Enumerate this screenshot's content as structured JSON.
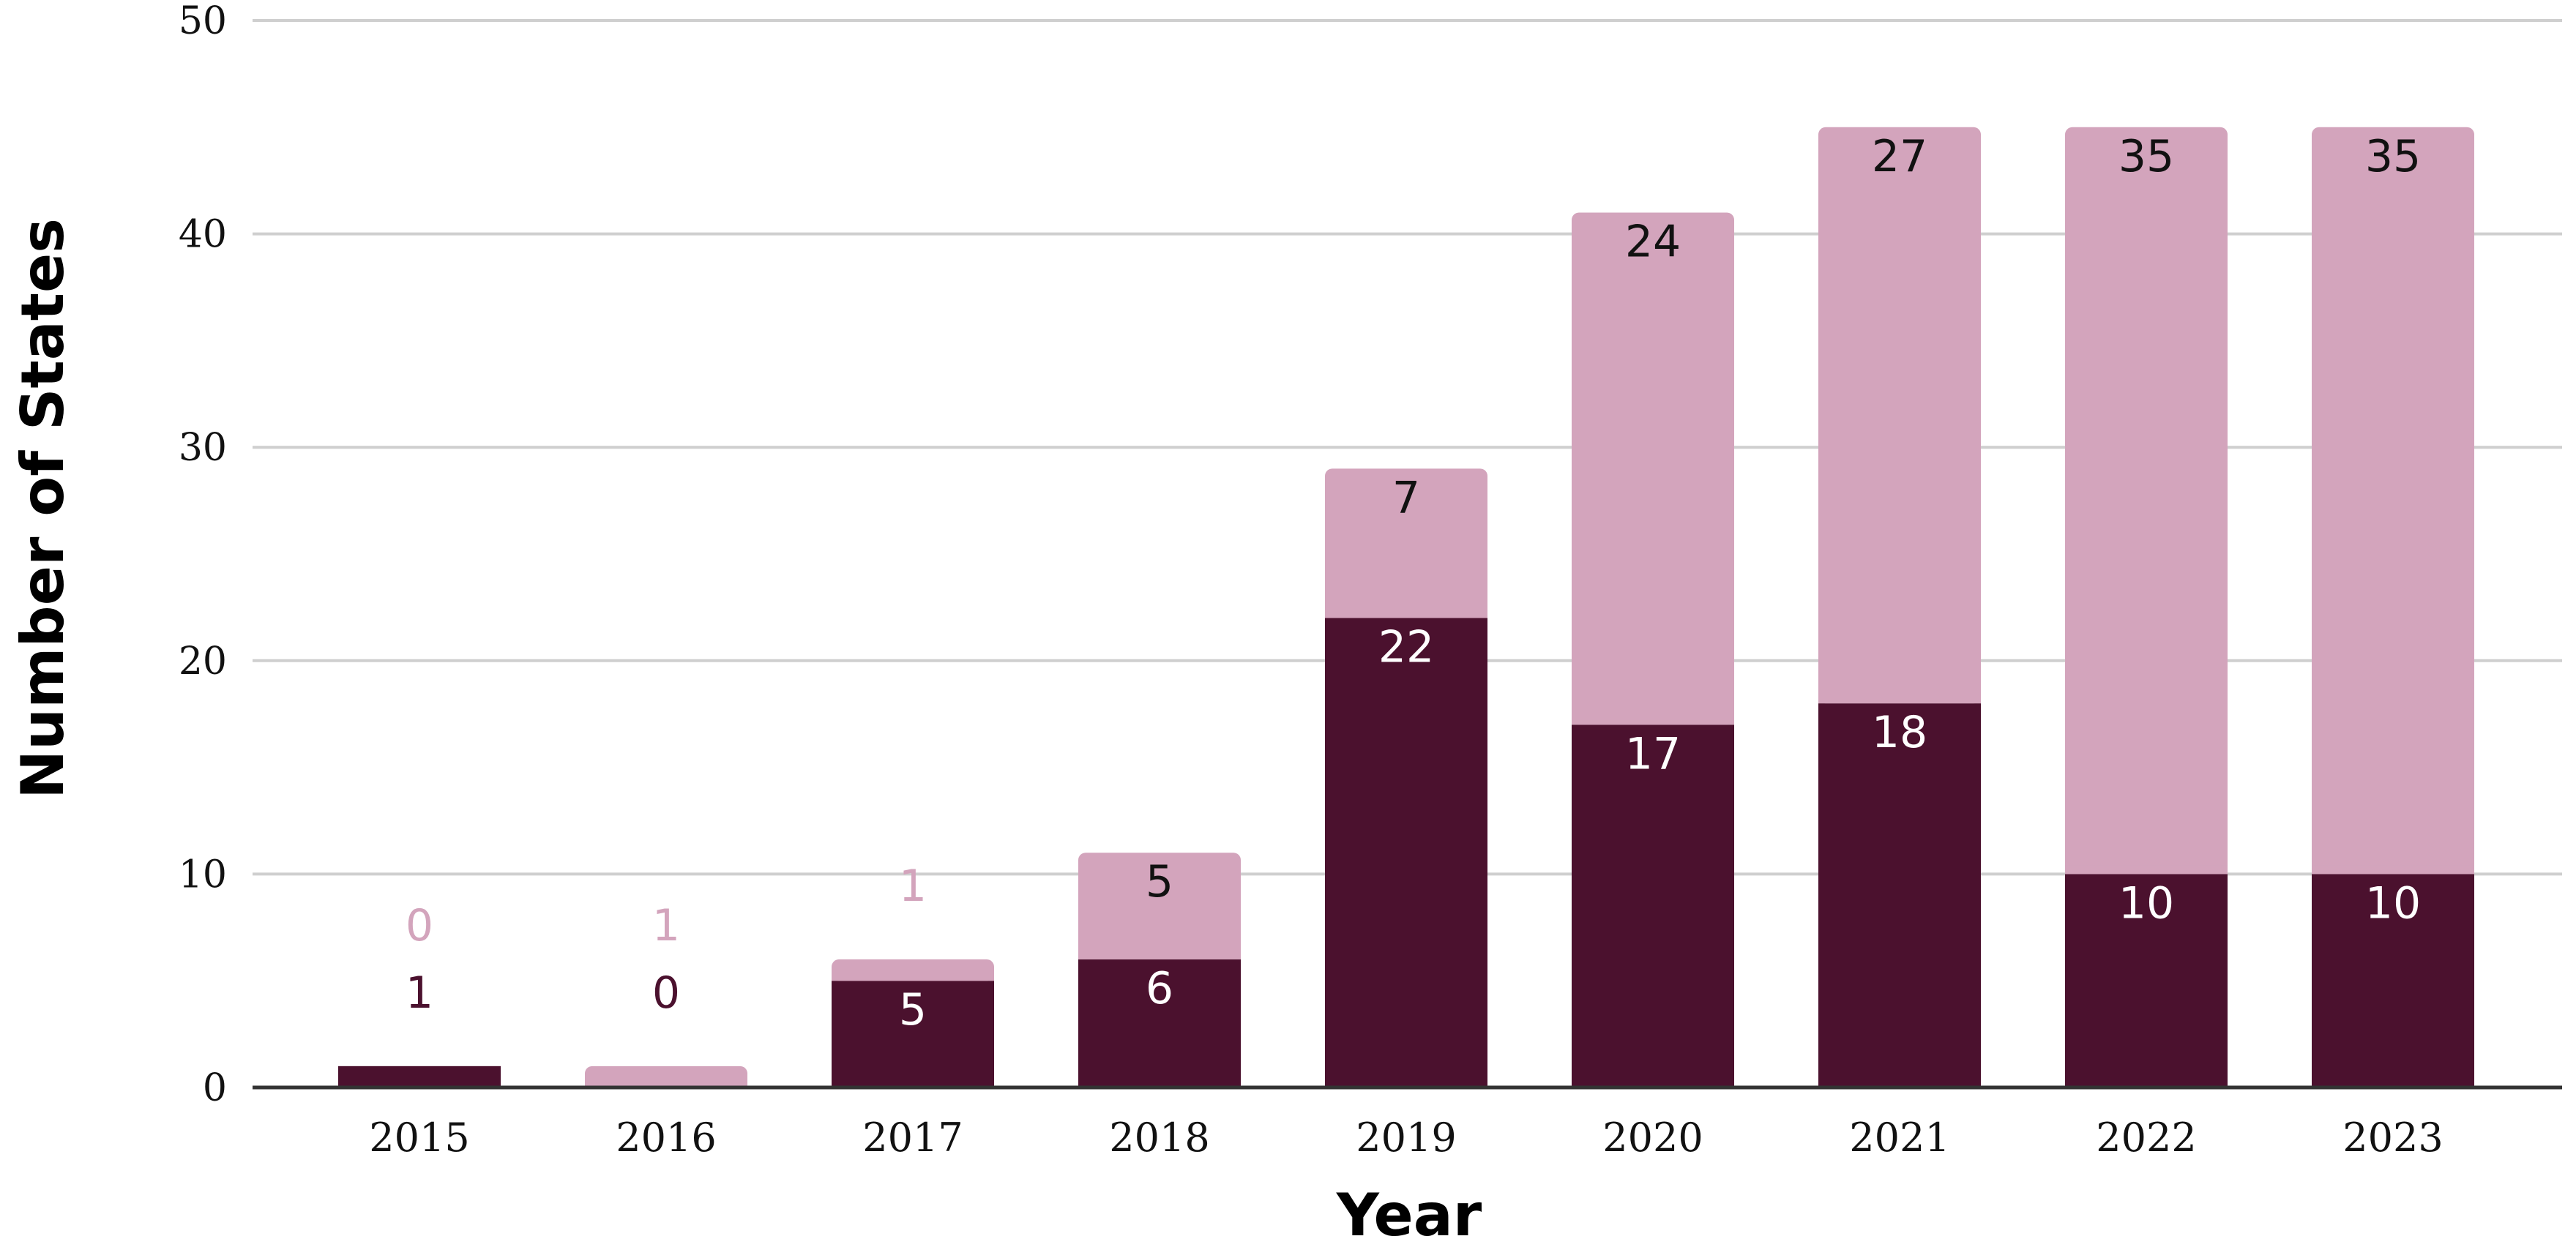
{
  "chart_data": {
    "type": "bar",
    "stacked": true,
    "categories": [
      "2015",
      "2016",
      "2017",
      "2018",
      "2019",
      "2020",
      "2021",
      "2022",
      "2023"
    ],
    "series": [
      {
        "values": [
          1,
          0,
          5,
          6,
          22,
          17,
          18,
          10,
          10
        ],
        "color": "#4b112e",
        "label_color_inside": "#ffffff",
        "label_color_outside": "#4b112e"
      },
      {
        "values": [
          0,
          1,
          1,
          5,
          7,
          24,
          27,
          35,
          35
        ],
        "color": "#d3a4bc",
        "label_color_inside": "#111111",
        "label_color_outside": "#d3a4bc"
      }
    ],
    "value_labels": [
      [
        "1",
        "0",
        "5",
        "6",
        "22",
        "17",
        "18",
        "10",
        "10"
      ],
      [
        "0",
        "1",
        "1",
        "5",
        "7",
        "24",
        "27",
        "35",
        "35"
      ]
    ],
    "ylim": [
      0,
      50
    ],
    "yticks": [
      "0",
      "10",
      "20",
      "30",
      "40",
      "50"
    ],
    "xlabel": "Year",
    "ylabel": "Number of States",
    "grid": true,
    "legend": "none"
  }
}
